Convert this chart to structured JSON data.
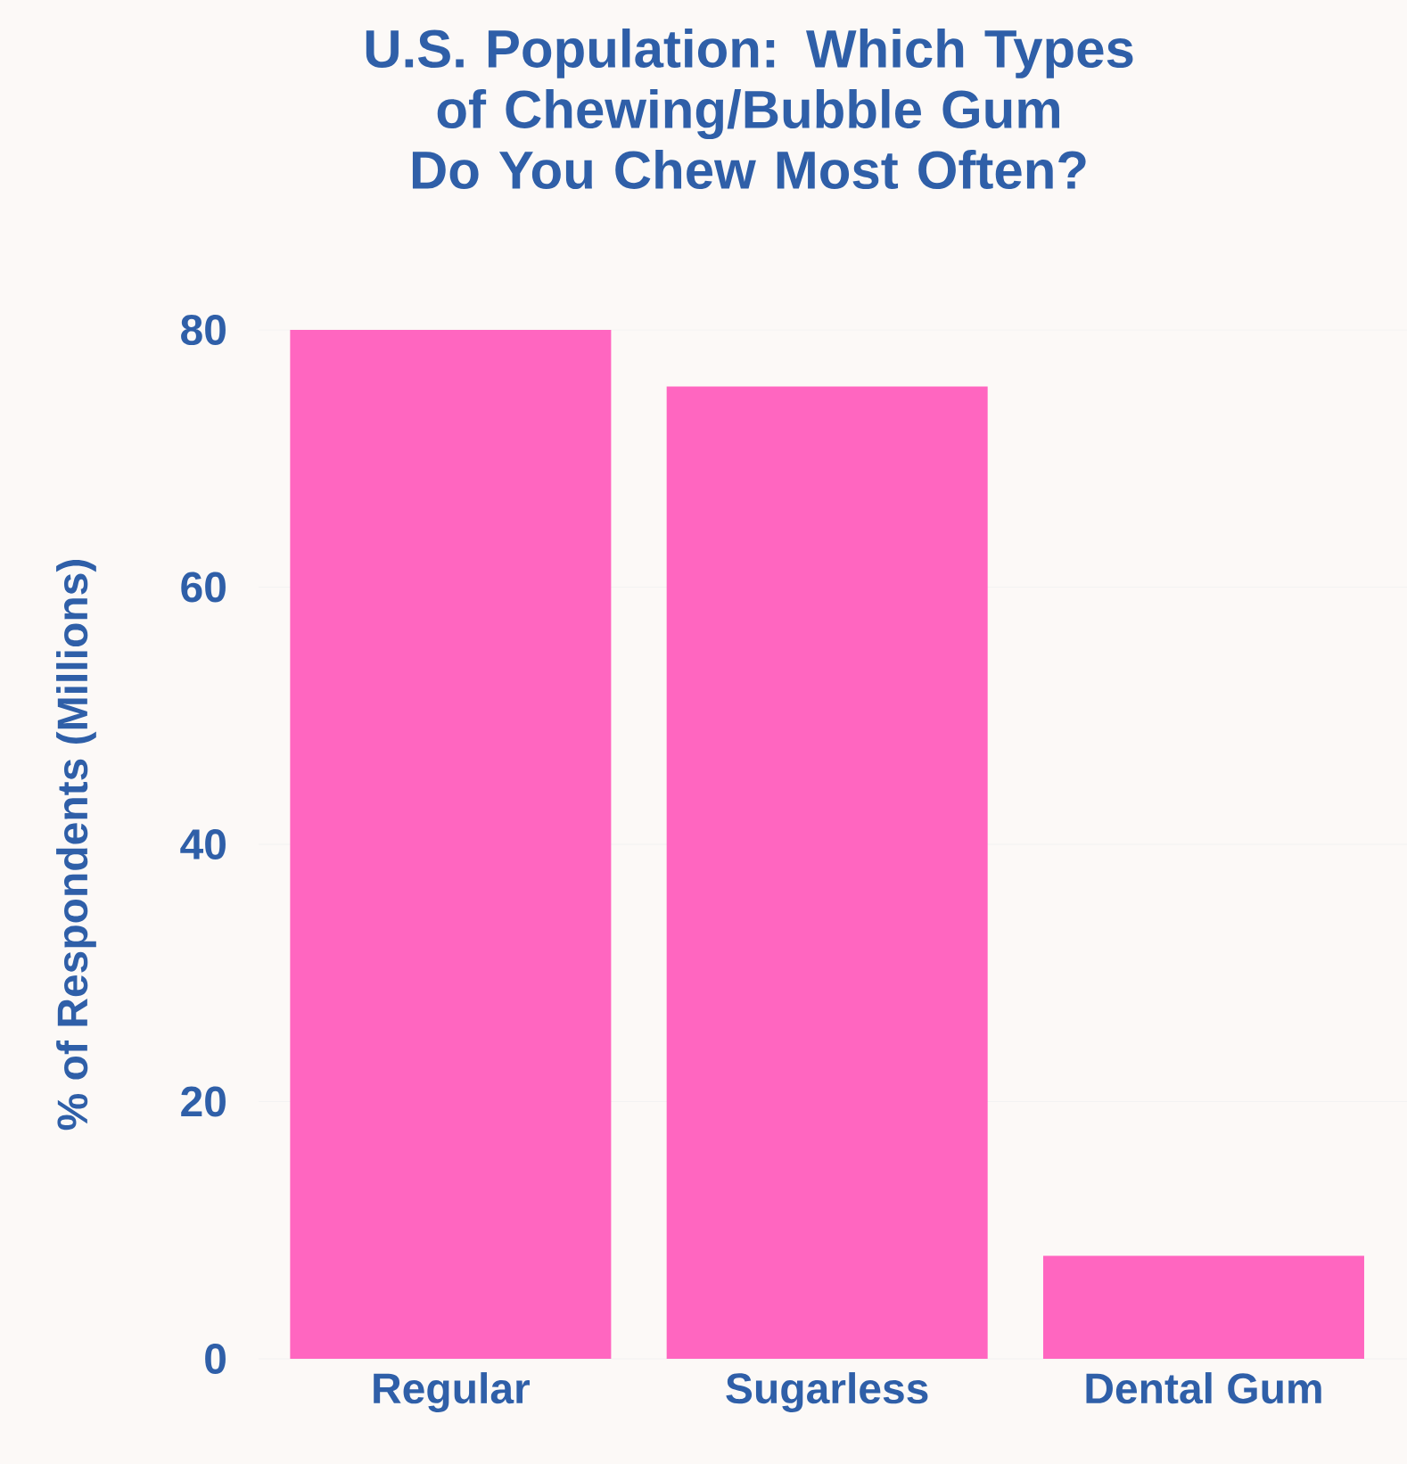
{
  "chart_data": {
    "type": "bar",
    "title": "U.S. Population: Which Types of Chewing/Bubble Gum Do You Chew Most Often?",
    "ylabel": "% of Respondents (Millions)",
    "categories": [
      "Regular",
      "Sugarless",
      "Dental Gum"
    ],
    "values": [
      80,
      75.6,
      8
    ],
    "color": "#ff66c0",
    "ylim": [
      0,
      80
    ],
    "yticks": [
      0,
      20,
      40,
      60,
      80
    ],
    "grid": "y"
  }
}
